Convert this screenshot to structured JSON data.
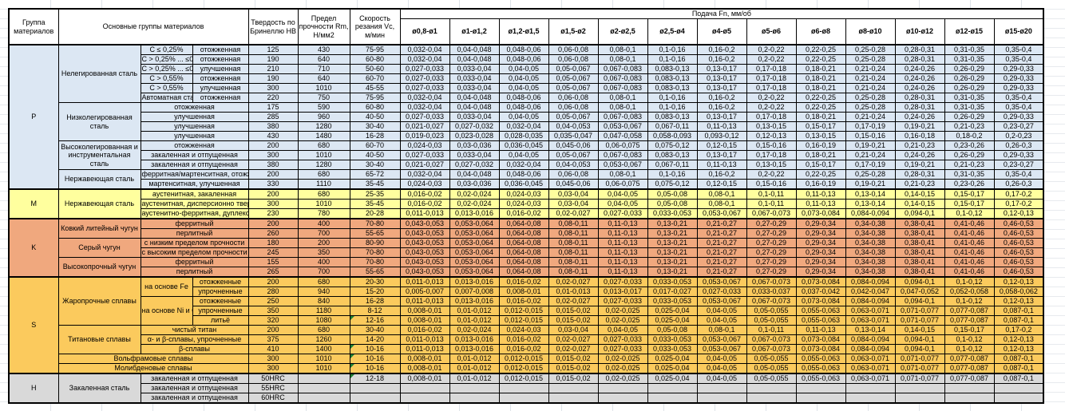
{
  "header": {
    "group": "Группа материалов",
    "main_groups": "Основные группы материалов",
    "hardness": "Твердость по Бринеллю HB",
    "strength": "Предел прочности Rm, Н/мм2",
    "speed": "Скорость резания Vc, м/мин",
    "feed": "Подача Fn, мм/об",
    "diameters": [
      "ø0,8-ø1",
      "ø1-ø1,2",
      "ø1,2-ø1,5",
      "ø1,5-ø2",
      "ø2-ø2,5",
      "ø2,5-ø4",
      "ø4-ø5",
      "ø5-ø6",
      "ø6-ø8",
      "ø8-ø10",
      "ø10-ø12",
      "ø12-ø15",
      "ø15-ø20"
    ]
  },
  "colors": {
    "P": "#dce7f3",
    "M": "#ffff9e",
    "K": "#f0a87e",
    "S": "#fbca5d",
    "H": "#d9d9d9",
    "error_indicator": "#1e7e34"
  },
  "feed_sets": {
    "A": [
      "0,032-0,04",
      "0,04-0,048",
      "0,048-0,06",
      "0,06-0,08",
      "0,08-0,1",
      "0,1-0,16",
      "0,16-0,2",
      "0,2-0,22",
      "0,22-0,25",
      "0,25-0,28",
      "0,28-0,31",
      "0,31-0,35",
      "0,35-0,4"
    ],
    "B": [
      "0,027-0,033",
      "0,033-0,04",
      "0,04-0,05",
      "0,05-0,067",
      "0,067-0,083",
      "0,083-0,13",
      "0,13-0,17",
      "0,17-0,18",
      "0,18-0,21",
      "0,21-0,24",
      "0,24-0,26",
      "0,26-0,29",
      "0,29-0,33"
    ],
    "C": [
      "0,021-0,027",
      "0,027-0,032",
      "0,032-0,04",
      "0,04-0,053",
      "0,053-0,067",
      "0,067-0,11",
      "0,11-0,13",
      "0,13-0,15",
      "0,15-0,17",
      "0,17-0,19",
      "0,19-0,21",
      "0,21-0,23",
      "0,23-0,27"
    ],
    "D": [
      "0,019-0,023",
      "0,023-0,028",
      "0,028-0,035",
      "0,035-0,047",
      "0,047-0,058",
      "0,058-0,093",
      "0,093-0,12",
      "0,12-0,13",
      "0,13-0,15",
      "0,15-0,16",
      "0,16-0,18",
      "0,18-0,2",
      "0,2-0,23"
    ],
    "E": [
      "0,024-0,03",
      "0,03-0,036",
      "0,036-0,045",
      "0,045-0,06",
      "0,06-0,075",
      "0,075-0,12",
      "0,12-0,15",
      "0,15-0,16",
      "0,16-0,19",
      "0,19-0,21",
      "0,21-0,23",
      "0,23-0,26",
      "0,26-0,3"
    ],
    "F": [
      "0,016-0,02",
      "0,02-0,024",
      "0,024-0,03",
      "0,03-0,04",
      "0,04-0,05",
      "0,05-0,08",
      "0,08-0,1",
      "0,1-0,11",
      "0,11-0,13",
      "0,13-0,14",
      "0,14-0,15",
      "0,15-0,17",
      "0,17-0,2"
    ],
    "G": [
      "0,011-0,013",
      "0,013-0,016",
      "0,016-0,02",
      "0,02-0,027",
      "0,027-0,033",
      "0,033-0,053",
      "0,053-0,067",
      "0,067-0,073",
      "0,073-0,084",
      "0,084-0,094",
      "0,094-0,1",
      "0,1-0,12",
      "0,12-0,13"
    ],
    "H": [
      "0,005-0,007",
      "0,007-0,008",
      "0,008-0,01",
      "0,01-0,013",
      "0,013-0,017",
      "0,017-0,027",
      "0,027-0,033",
      "0,033-0,037",
      "0,037-0,042",
      "0,042-0,047",
      "0,047-0,052",
      "0,052-0,058",
      "0,058-0,062"
    ],
    "I": [
      "0,008-0,01",
      "0,01-0,012",
      "0,012-0,015",
      "0,015-0,02",
      "0,02-0,025",
      "0,025-0,04",
      "0,04-0,05",
      "0,05-0,055",
      "0,055-0,063",
      "0,063-0,071",
      "0,071-0,077",
      "0,077-0,087",
      "0,087-0,1"
    ],
    "K": [
      "0,043-0,053",
      "0,053-0,064",
      "0,064-0,08",
      "0,08-0,11",
      "0,11-0,13",
      "0,13-0,21",
      "0,21-0,27",
      "0,27-0,29",
      "0,29-0,34",
      "0,34-0,38",
      "0,38-0,41",
      "0,41-0,46",
      "0,46-0,53"
    ],
    "EMPTY": [
      "",
      "",
      "",
      "",
      "",
      "",
      "",
      "",
      "",
      "",
      "",
      "",
      ""
    ]
  },
  "groups": [
    {
      "code": "P",
      "rows": [
        {
          "labels": [
            {
              "t": "Нелегированная сталь",
              "rs": 6,
              "role": "mat"
            },
            {
              "t": "C ≤ 0,25%",
              "role": "sub"
            },
            {
              "t": "отожженная",
              "role": "state"
            }
          ],
          "hb": "125",
          "rm": "430",
          "vc": "75-95",
          "feeds": "A"
        },
        {
          "labels": [
            {
              "t": "C > 0,25% ... ≤0,55%",
              "role": "sub"
            },
            {
              "t": "отожженная",
              "role": "state"
            }
          ],
          "hb": "190",
          "rm": "640",
          "vc": "60-80",
          "feeds": "A"
        },
        {
          "labels": [
            {
              "t": "C > 0,25% ... ≤0,55%",
              "role": "sub"
            },
            {
              "t": "улучшенная",
              "role": "state"
            }
          ],
          "hb": "210",
          "rm": "710",
          "vc": "50-60",
          "feeds": "B"
        },
        {
          "labels": [
            {
              "t": "C > 0,55%",
              "role": "sub"
            },
            {
              "t": "отожженная",
              "role": "state"
            }
          ],
          "hb": "190",
          "rm": "640",
          "vc": "60-70",
          "feeds": "B"
        },
        {
          "labels": [
            {
              "t": "C > 0,55%",
              "role": "sub"
            },
            {
              "t": "улучшенная",
              "role": "state"
            }
          ],
          "hb": "300",
          "rm": "1010",
          "vc": "45-55",
          "feeds": "B"
        },
        {
          "labels": [
            {
              "t": "Автоматная сталь",
              "role": "sub"
            },
            {
              "t": "отожженная",
              "role": "state"
            }
          ],
          "hb": "220",
          "rm": "750",
          "vc": "75-95",
          "feeds": "A"
        },
        {
          "labels": [
            {
              "t": "Низколегированная сталь",
              "rs": 4,
              "role": "mat"
            },
            {
              "t": "отожженная",
              "cs": 2,
              "role": "state"
            }
          ],
          "hb": "175",
          "rm": "590",
          "vc": "60-80",
          "feeds": "A"
        },
        {
          "labels": [
            {
              "t": "улучшенная",
              "cs": 2,
              "role": "state"
            }
          ],
          "hb": "285",
          "rm": "960",
          "vc": "40-50",
          "feeds": "B"
        },
        {
          "labels": [
            {
              "t": "улучшенная",
              "cs": 2,
              "role": "state"
            }
          ],
          "hb": "380",
          "rm": "1280",
          "vc": "30-40",
          "feeds": "C"
        },
        {
          "labels": [
            {
              "t": "улучшенная",
              "cs": 2,
              "role": "state"
            }
          ],
          "hb": "430",
          "rm": "1480",
          "vc": "16-28",
          "feeds": "D"
        },
        {
          "labels": [
            {
              "t": "Высоколегированная и инструментальная сталь",
              "rs": 3,
              "role": "mat"
            },
            {
              "t": "отожженная",
              "cs": 2,
              "role": "state"
            }
          ],
          "hb": "200",
          "rm": "680",
          "vc": "60-70",
          "feeds": "E"
        },
        {
          "labels": [
            {
              "t": "закаленная и отпущенная",
              "cs": 2,
              "role": "state"
            }
          ],
          "hb": "300",
          "rm": "1010",
          "vc": "40-50",
          "feeds": "B"
        },
        {
          "labels": [
            {
              "t": "закаленная и отпущенная",
              "cs": 2,
              "role": "state"
            }
          ],
          "hb": "380",
          "rm": "1280",
          "vc": "30-40",
          "feeds": "C"
        },
        {
          "labels": [
            {
              "t": "Нержавеющая сталь",
              "rs": 2,
              "role": "mat"
            },
            {
              "t": "ферритная/мартенситная, отожженная",
              "cs": 2,
              "role": "state"
            }
          ],
          "hb": "200",
          "rm": "680",
          "vc": "65-72",
          "feeds": "A"
        },
        {
          "labels": [
            {
              "t": "мартенситная, улучшенная",
              "cs": 2,
              "role": "state"
            }
          ],
          "hb": "330",
          "rm": "1110",
          "vc": "35-45",
          "feeds": "E"
        }
      ]
    },
    {
      "code": "M",
      "rows": [
        {
          "labels": [
            {
              "t": "Нержавеющая сталь",
              "rs": 3,
              "role": "mat"
            },
            {
              "t": "аустенитная, закаленная",
              "cs": 2,
              "role": "state"
            }
          ],
          "hb": "200",
          "rm": "680",
          "vc": "25-35",
          "feeds": "F"
        },
        {
          "labels": [
            {
              "t": "аустенитная, дисперсионно твердеющая",
              "cs": 2,
              "role": "state"
            }
          ],
          "hb": "300",
          "rm": "1010",
          "vc": "35-45",
          "feeds": "F"
        },
        {
          "labels": [
            {
              "t": "аустенитно-ферритная, дуплексная",
              "cs": 2,
              "role": "state"
            }
          ],
          "hb": "230",
          "rm": "780",
          "vc": "20-28",
          "feeds": "G"
        }
      ]
    },
    {
      "code": "K",
      "rows": [
        {
          "labels": [
            {
              "t": "Ковкий литейный чугун",
              "rs": 2,
              "role": "mat"
            },
            {
              "t": "ферритный",
              "cs": 2,
              "role": "state"
            }
          ],
          "hb": "200",
          "rm": "400",
          "vc": "70-80",
          "feeds": "K"
        },
        {
          "labels": [
            {
              "t": "перлитный",
              "cs": 2,
              "role": "state"
            }
          ],
          "hb": "260",
          "rm": "700",
          "vc": "55-65",
          "feeds": "K"
        },
        {
          "labels": [
            {
              "t": "Серый чугун",
              "rs": 2,
              "role": "mat"
            },
            {
              "t": "с низким пределом прочности",
              "cs": 2,
              "role": "state"
            }
          ],
          "hb": "180",
          "rm": "200",
          "vc": "80-90",
          "feeds": "K"
        },
        {
          "labels": [
            {
              "t": "с высоким пределом прочности",
              "cs": 2,
              "role": "state"
            }
          ],
          "hb": "245",
          "rm": "350",
          "vc": "70-80",
          "feeds": "K"
        },
        {
          "labels": [
            {
              "t": "Высокопрочный чугун",
              "rs": 2,
              "role": "mat"
            },
            {
              "t": "ферритный",
              "cs": 2,
              "role": "state"
            }
          ],
          "hb": "155",
          "rm": "400",
          "vc": "70-80",
          "feeds": "K"
        },
        {
          "labels": [
            {
              "t": "перлитный",
              "cs": 2,
              "role": "state"
            }
          ],
          "hb": "265",
          "rm": "700",
          "vc": "55-65",
          "feeds": "K"
        }
      ]
    },
    {
      "code": "S",
      "rows": [
        {
          "labels": [
            {
              "t": "Жаропрочные сплавы",
              "rs": 5,
              "role": "mat"
            },
            {
              "t": "на основе Fe",
              "rs": 2,
              "role": "sub"
            },
            {
              "t": "отожженные",
              "role": "state"
            }
          ],
          "hb": "200",
          "rm": "680",
          "vc": "20-30",
          "feeds": "G"
        },
        {
          "labels": [
            {
              "t": "упрочненные",
              "role": "state"
            }
          ],
          "hb": "280",
          "rm": "940",
          "vc": "15-20",
          "feeds": "H"
        },
        {
          "labels": [
            {
              "t": "на основе Ni и Co",
              "rs": 3,
              "role": "sub"
            },
            {
              "t": "отожженные",
              "role": "state"
            }
          ],
          "hb": "250",
          "rm": "840",
          "vc": "16-28",
          "feeds": "G"
        },
        {
          "labels": [
            {
              "t": "упрочненные",
              "role": "state"
            }
          ],
          "hb": "350",
          "rm": "1180",
          "vc": "8-12",
          "feeds": "I"
        },
        {
          "labels": [
            {
              "t": "литьё",
              "role": "state"
            }
          ],
          "hb": "320",
          "rm": "1080",
          "vc": "12-16",
          "tri": true,
          "feeds": "I"
        },
        {
          "labels": [
            {
              "t": "Титановые сплавы",
              "rs": 3,
              "role": "mat"
            },
            {
              "t": "чистый титан",
              "cs": 2,
              "role": "state"
            }
          ],
          "hb": "200",
          "rm": "680",
          "vc": "30-40",
          "feeds": "F"
        },
        {
          "labels": [
            {
              "t": "α- и β-сплавы, упрочненные",
              "cs": 2,
              "role": "state"
            }
          ],
          "hb": "375",
          "rm": "1260",
          "vc": "14-20",
          "feeds": "G"
        },
        {
          "labels": [
            {
              "t": "β-сплавы",
              "cs": 2,
              "role": "state"
            }
          ],
          "hb": "410",
          "rm": "1400",
          "vc": "10-16",
          "tri": true,
          "feeds": "G"
        },
        {
          "labels": [
            {
              "t": "Вольфрамовые сплавы",
              "cs": 3,
              "role": "mat"
            }
          ],
          "hb": "300",
          "rm": "1010",
          "vc": "10-16",
          "tri": true,
          "feeds": "I"
        },
        {
          "labels": [
            {
              "t": "Молибденовые сплавы",
              "cs": 3,
              "role": "mat"
            }
          ],
          "hb": "300",
          "rm": "1010",
          "vc": "10-16",
          "tri": true,
          "feeds": "I"
        }
      ]
    },
    {
      "code": "H",
      "rows": [
        {
          "labels": [
            {
              "t": "Закаленная сталь",
              "rs": 3,
              "role": "mat"
            },
            {
              "t": "закаленная и отпущенная",
              "cs": 2,
              "role": "state"
            }
          ],
          "hb": "50HRC",
          "rm": "",
          "vc": "12-18",
          "tri": true,
          "feeds": "I"
        },
        {
          "labels": [
            {
              "t": "закаленная и отпущенная",
              "cs": 2,
              "role": "state"
            }
          ],
          "hb": "55HRC",
          "rm": "",
          "vc": "",
          "feeds": "EMPTY"
        },
        {
          "labels": [
            {
              "t": "закаленная и отпущенная",
              "cs": 2,
              "role": "state"
            }
          ],
          "hb": "60HRC",
          "rm": "",
          "vc": "",
          "feeds": "EMPTY"
        }
      ]
    }
  ]
}
